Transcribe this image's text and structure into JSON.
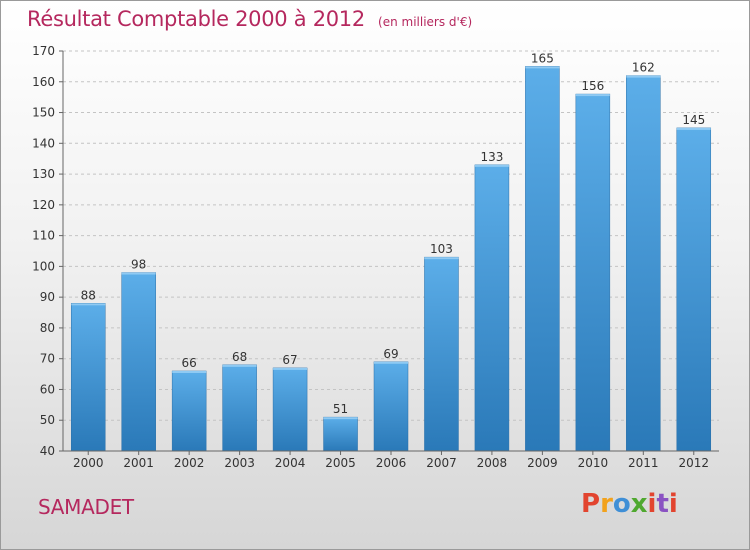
{
  "chart_data": {
    "type": "bar",
    "title": "Résultat Comptable 2000 à 2012",
    "subtitle": "(en milliers d'€)",
    "xlabel": "",
    "ylabel": "",
    "categories": [
      "2000",
      "2001",
      "2002",
      "2003",
      "2004",
      "2005",
      "2006",
      "2007",
      "2008",
      "2009",
      "2010",
      "2011",
      "2012"
    ],
    "values": [
      88,
      98,
      66,
      68,
      67,
      51,
      69,
      103,
      133,
      165,
      156,
      162,
      145
    ],
    "ylim": [
      40,
      170
    ],
    "yticks": [
      40,
      50,
      60,
      70,
      80,
      90,
      100,
      110,
      120,
      130,
      140,
      150,
      160,
      170
    ],
    "grid": true,
    "bar_color": "#3f94d6"
  },
  "location": "SAMADET",
  "logo": {
    "text": "Proxiti",
    "colors": [
      "#e2442f",
      "#f2a21c",
      "#3f8fd6",
      "#4fa82f",
      "#e2442f",
      "#8a52c2",
      "#e2442f"
    ]
  }
}
